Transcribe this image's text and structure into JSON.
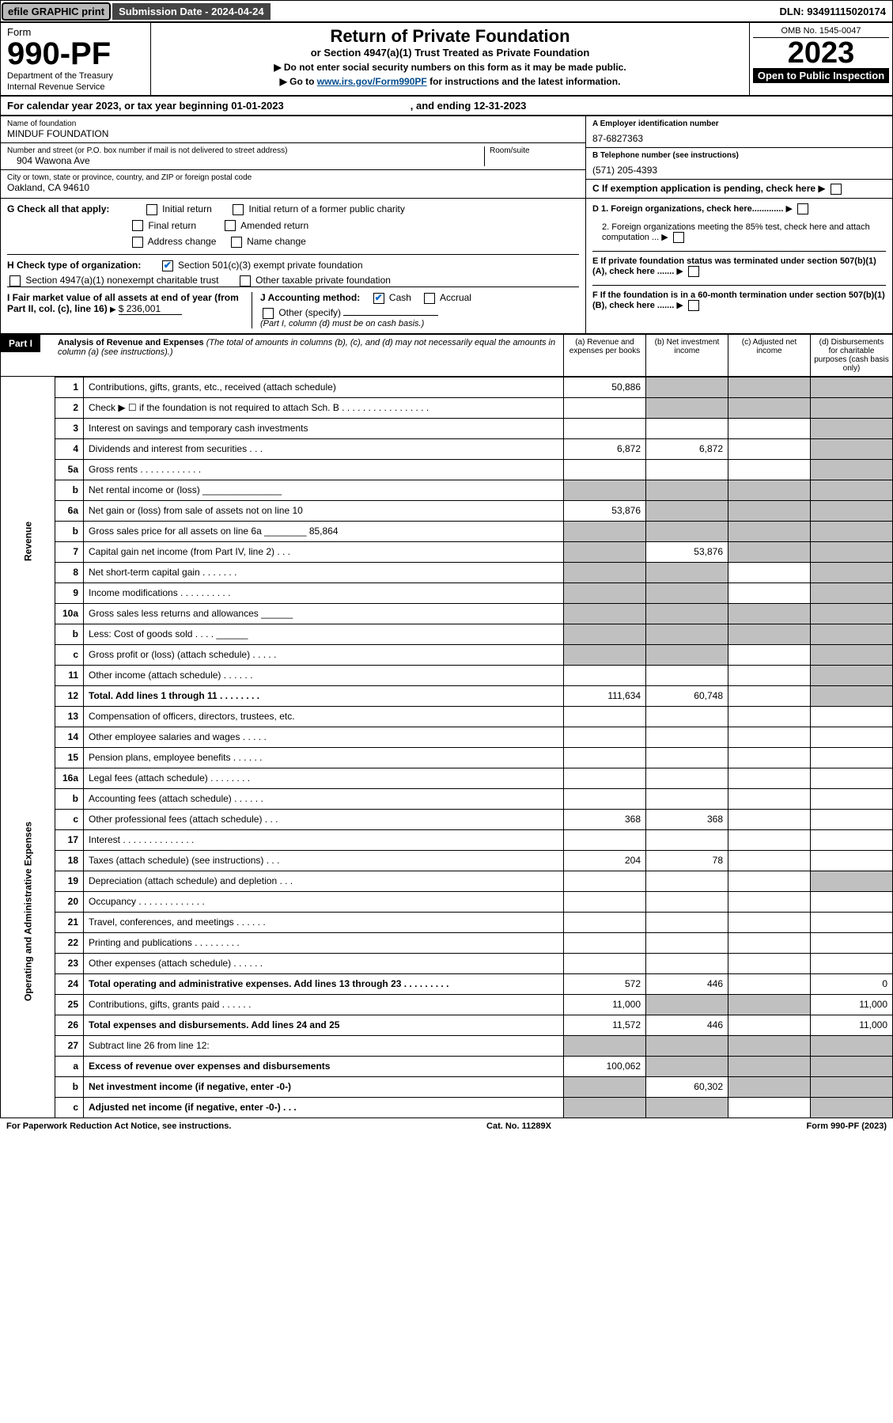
{
  "topbar": {
    "efile": "efile GRAPHIC print",
    "submission": "Submission Date - 2024-04-24",
    "dln": "DLN: 93491115020174"
  },
  "header": {
    "form_lbl": "Form",
    "form_no": "990-PF",
    "dept": "Department of the Treasury",
    "irs": "Internal Revenue Service",
    "title": "Return of Private Foundation",
    "subtitle": "or Section 4947(a)(1) Trust Treated as Private Foundation",
    "instr1": "▶ Do not enter social security numbers on this form as it may be made public.",
    "instr2_pre": "▶ Go to ",
    "instr2_link": "www.irs.gov/Form990PF",
    "instr2_post": " for instructions and the latest information.",
    "omb": "OMB No. 1545-0047",
    "year": "2023",
    "open": "Open to Public Inspection"
  },
  "calyear": {
    "pre": "For calendar year 2023, or tax year beginning ",
    "start": "01-01-2023",
    "mid": ", and ending ",
    "end": "12-31-2023"
  },
  "ident": {
    "name_lbl": "Name of foundation",
    "name": "MINDUF FOUNDATION",
    "addr_lbl": "Number and street (or P.O. box number if mail is not delivered to street address)",
    "addr": "904 Wawona Ave",
    "room_lbl": "Room/suite",
    "city_lbl": "City or town, state or province, country, and ZIP or foreign postal code",
    "city": "Oakland, CA  94610",
    "a_lbl": "A Employer identification number",
    "a_val": "87-6827363",
    "b_lbl": "B Telephone number (see instructions)",
    "b_val": "(571) 205-4393",
    "c_lbl": "C If exemption application is pending, check here",
    "d1": "D 1. Foreign organizations, check here.............",
    "d2": "2. Foreign organizations meeting the 85% test, check here and attach computation ...",
    "e": "E  If private foundation status was terminated under section 507(b)(1)(A), check here .......",
    "f": "F  If the foundation is in a 60-month termination under section 507(b)(1)(B), check here ......."
  },
  "checks": {
    "g_lbl": "G Check all that apply:",
    "g_items": [
      "Initial return",
      "Initial return of a former public charity",
      "Final return",
      "Amended return",
      "Address change",
      "Name change"
    ],
    "h_lbl": "H Check type of organization:",
    "h1": "Section 501(c)(3) exempt private foundation",
    "h2": "Section 4947(a)(1) nonexempt charitable trust",
    "h3": "Other taxable private foundation",
    "i_lbl": "I Fair market value of all assets at end of year (from Part II, col. (c), line 16)",
    "i_val": "$  236,001",
    "j_lbl": "J Accounting method:",
    "j_cash": "Cash",
    "j_accrual": "Accrual",
    "j_other": "Other (specify)",
    "j_note": "(Part I, column (d) must be on cash basis.)"
  },
  "part1": {
    "label": "Part I",
    "title": "Analysis of Revenue and Expenses",
    "title_note": " (The total of amounts in columns (b), (c), and (d) may not necessarily equal the amounts in column (a) (see instructions).)",
    "cols": {
      "a": "(a)  Revenue and expenses per books",
      "b": "(b)  Net investment income",
      "c": "(c)  Adjusted net income",
      "d": "(d)  Disbursements for charitable purposes (cash basis only)"
    }
  },
  "sections": {
    "rev": "Revenue",
    "oae": "Operating and Administrative Expenses"
  },
  "rows": [
    {
      "n": "1",
      "d": "Contributions, gifts, grants, etc., received (attach schedule)",
      "a": "50,886",
      "ashade": false,
      "bs": true,
      "cs": true,
      "ds": true
    },
    {
      "n": "2",
      "d": "Check ▶ ☐ if the foundation is not required to attach Sch. B  .  .  .  .  .  .  .  .  .  .  .  .  .  .  .  .  .",
      "bs": true,
      "cs": true,
      "ds": true
    },
    {
      "n": "3",
      "d": "Interest on savings and temporary cash investments",
      "ds": true
    },
    {
      "n": "4",
      "d": "Dividends and interest from securities  .  .  .",
      "a": "6,872",
      "b": "6,872",
      "ds": true
    },
    {
      "n": "5a",
      "d": "Gross rents  .  .  .  .  .  .  .  .  .  .  .  .",
      "ds": true
    },
    {
      "n": "b",
      "d": "Net rental income or (loss)  _______________",
      "as": true,
      "bs": true,
      "cs": true,
      "ds": true
    },
    {
      "n": "6a",
      "d": "Net gain or (loss) from sale of assets not on line 10",
      "a": "53,876",
      "bs": true,
      "cs": true,
      "ds": true
    },
    {
      "n": "b",
      "d": "Gross sales price for all assets on line 6a ________ 85,864",
      "as": true,
      "bs": true,
      "cs": true,
      "ds": true
    },
    {
      "n": "7",
      "d": "Capital gain net income (from Part IV, line 2)  .  .  .",
      "as": true,
      "b": "53,876",
      "cs": true,
      "ds": true
    },
    {
      "n": "8",
      "d": "Net short-term capital gain  .  .  .  .  .  .  .",
      "as": true,
      "bs": true,
      "ds": true
    },
    {
      "n": "9",
      "d": "Income modifications .  .  .  .  .  .  .  .  .  .",
      "as": true,
      "bs": true,
      "ds": true
    },
    {
      "n": "10a",
      "d": "Gross sales less returns and allowances  ______",
      "as": true,
      "bs": true,
      "cs": true,
      "ds": true
    },
    {
      "n": "b",
      "d": "Less: Cost of goods sold  .  .  .  .  ______",
      "as": true,
      "bs": true,
      "cs": true,
      "ds": true
    },
    {
      "n": "c",
      "d": "Gross profit or (loss) (attach schedule)  .  .  .  .  .",
      "as": true,
      "bs": true,
      "ds": true
    },
    {
      "n": "11",
      "d": "Other income (attach schedule)  .  .  .  .  .  .",
      "ds": true
    },
    {
      "n": "12",
      "d": "Total. Add lines 1 through 11  .  .  .  .  .  .  .  .",
      "bold": true,
      "a": "111,634",
      "b": "60,748",
      "ds": true
    },
    {
      "n": "13",
      "d": "Compensation of officers, directors, trustees, etc.",
      "sec": "oae"
    },
    {
      "n": "14",
      "d": "Other employee salaries and wages  .  .  .  .  ."
    },
    {
      "n": "15",
      "d": "Pension plans, employee benefits .  .  .  .  .  ."
    },
    {
      "n": "16a",
      "d": "Legal fees (attach schedule) .  .  .  .  .  .  .  ."
    },
    {
      "n": "b",
      "d": "Accounting fees (attach schedule) .  .  .  .  .  ."
    },
    {
      "n": "c",
      "d": "Other professional fees (attach schedule)  .  .  .",
      "a": "368",
      "b": "368"
    },
    {
      "n": "17",
      "d": "Interest .  .  .  .  .  .  .  .  .  .  .  .  .  ."
    },
    {
      "n": "18",
      "d": "Taxes (attach schedule) (see instructions)  .  .  .",
      "a": "204",
      "b": "78"
    },
    {
      "n": "19",
      "d": "Depreciation (attach schedule) and depletion  .  .  .",
      "ds": true
    },
    {
      "n": "20",
      "d": "Occupancy .  .  .  .  .  .  .  .  .  .  .  .  ."
    },
    {
      "n": "21",
      "d": "Travel, conferences, and meetings .  .  .  .  .  ."
    },
    {
      "n": "22",
      "d": "Printing and publications .  .  .  .  .  .  .  .  ."
    },
    {
      "n": "23",
      "d": "Other expenses (attach schedule) .  .  .  .  .  ."
    },
    {
      "n": "24",
      "d": "Total operating and administrative expenses. Add lines 13 through 23  .  .  .  .  .  .  .  .  .",
      "bold": true,
      "a": "572",
      "b": "446",
      "dval": "0"
    },
    {
      "n": "25",
      "d": "Contributions, gifts, grants paid  .  .  .  .  .  .",
      "a": "11,000",
      "bs": true,
      "cs": true,
      "dval": "11,000"
    },
    {
      "n": "26",
      "d": "Total expenses and disbursements. Add lines 24 and 25",
      "bold": true,
      "a": "11,572",
      "b": "446",
      "dval": "11,000"
    },
    {
      "n": "27",
      "d": "Subtract line 26 from line 12:",
      "as": true,
      "bs": true,
      "cs": true,
      "ds": true
    },
    {
      "n": "a",
      "d": "Excess of revenue over expenses and disbursements",
      "bold": true,
      "a": "100,062",
      "bs": true,
      "cs": true,
      "ds": true
    },
    {
      "n": "b",
      "d": "Net investment income (if negative, enter -0-)",
      "bold": true,
      "as": true,
      "b": "60,302",
      "cs": true,
      "ds": true
    },
    {
      "n": "c",
      "d": "Adjusted net income (if negative, enter -0-)  .  .  .",
      "bold": true,
      "as": true,
      "bs": true,
      "ds": true
    }
  ],
  "footer": {
    "left": "For Paperwork Reduction Act Notice, see instructions.",
    "mid": "Cat. No. 11289X",
    "right": "Form 990-PF (2023)"
  }
}
